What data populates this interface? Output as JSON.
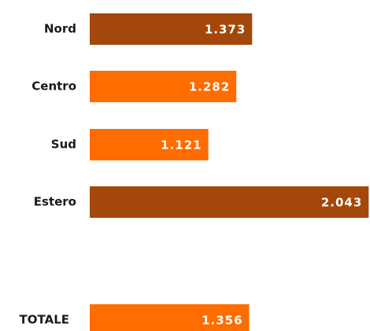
{
  "chart_data": {
    "type": "bar",
    "orientation": "horizontal",
    "categories": [
      "Nord",
      "Centro",
      "Sud",
      "Estero",
      "TOTALE"
    ],
    "values": [
      1373,
      1282,
      1121,
      2043,
      1356
    ],
    "value_labels": [
      "1.373",
      "1.282",
      "1.121",
      "2.043",
      "1.356"
    ],
    "colors": [
      "#a3470b",
      "#ff6c00",
      "#ff6c00",
      "#a3470b",
      "#ff6c00"
    ]
  }
}
